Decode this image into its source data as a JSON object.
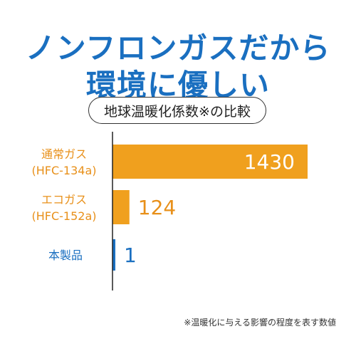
{
  "headline": {
    "line1": "ノンフロンガスだから",
    "line2": "環境に優しい"
  },
  "subtitle": "地球温暖化係数※の比較",
  "footnote": "※温暖化に与える影響の程度を表す数値",
  "colors": {
    "headline": "#1a6fc0",
    "bar_orange": "#f0a01e",
    "bar_blue": "#1a6fc0",
    "label_orange": "#e8901a",
    "label_blue": "#1a6fc0",
    "value_white": "#ffffff"
  },
  "chart_data": {
    "type": "bar",
    "orientation": "horizontal",
    "xlim": [
      0,
      1430
    ],
    "categories": [
      {
        "line1": "通常ガス",
        "line2": "(HFC-134a)",
        "value": 1430,
        "value_label": "1430",
        "color": "#f0a01e",
        "label_color": "#e8901a"
      },
      {
        "line1": "エコガス",
        "line2": "(HFC-152a)",
        "value": 124,
        "value_label": "124",
        "color": "#f0a01e",
        "label_color": "#e8901a"
      },
      {
        "line1": "本製品",
        "line2": "",
        "value": 1,
        "value_label": "1",
        "color": "#1a6fc0",
        "label_color": "#1a6fc0"
      }
    ]
  }
}
